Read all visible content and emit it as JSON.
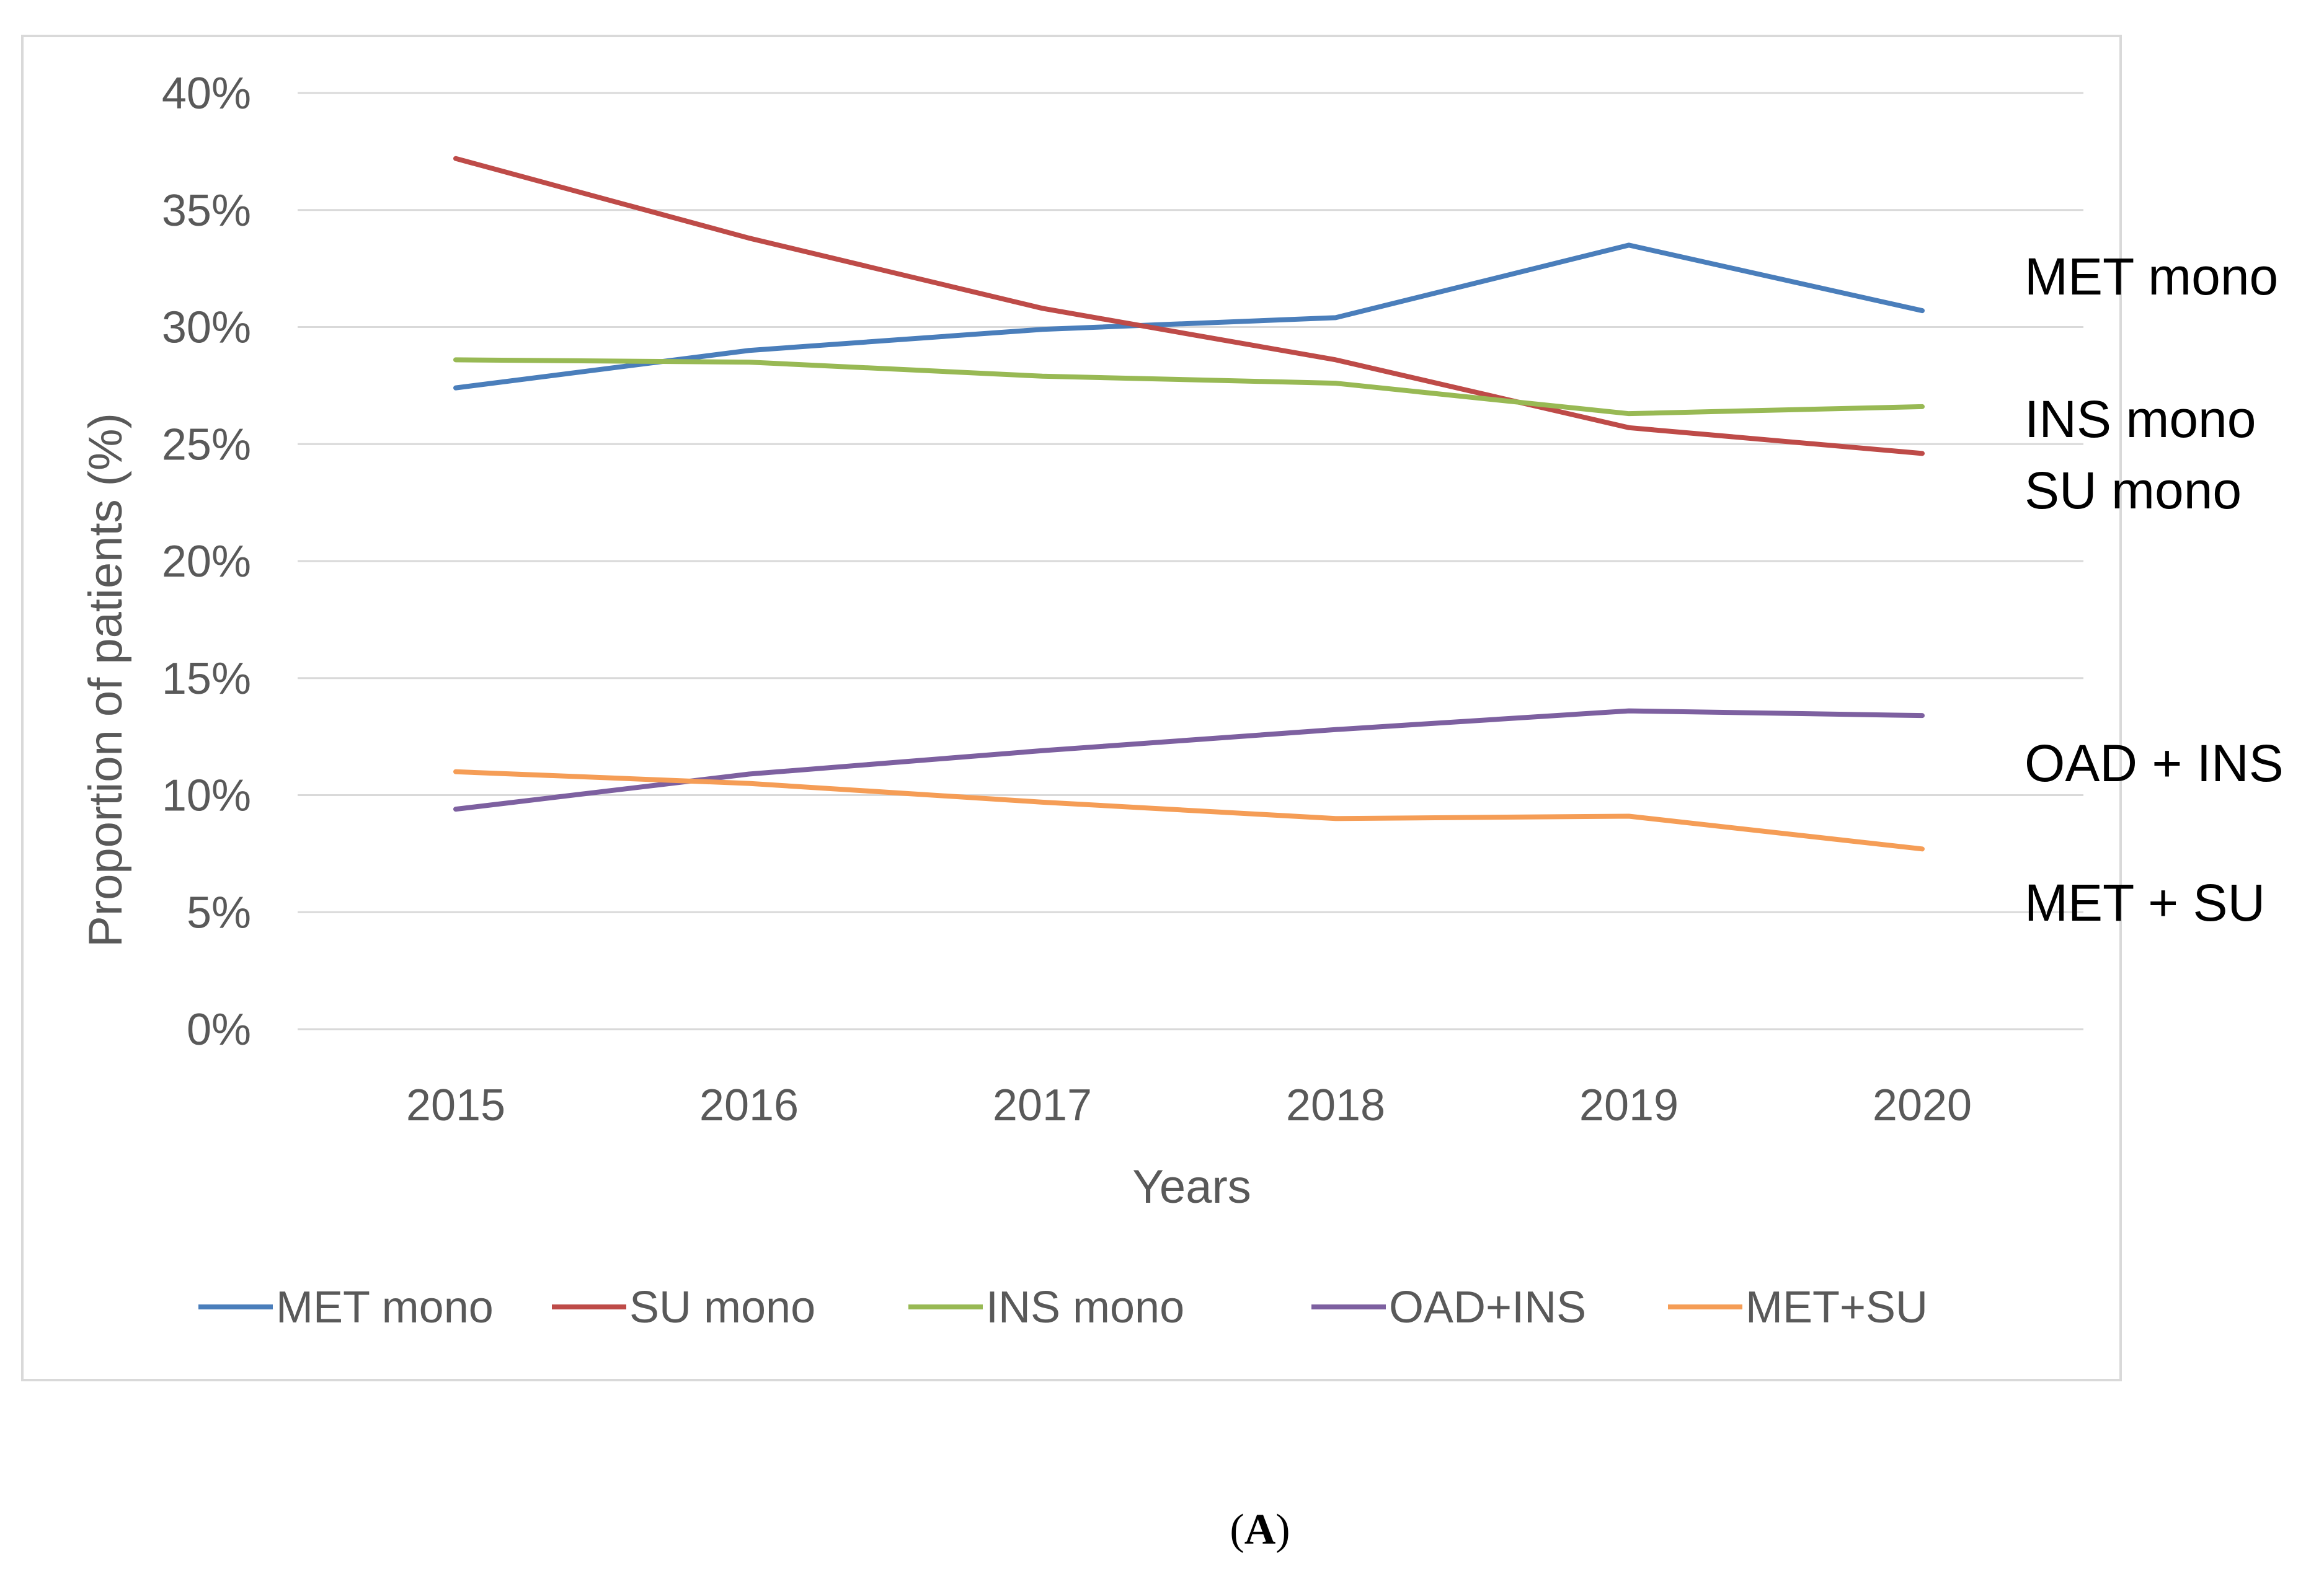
{
  "chart_data": {
    "type": "line",
    "title": "",
    "xlabel": "Years",
    "ylabel": "Proportion of patients (%)",
    "categories": [
      "2015",
      "2016",
      "2017",
      "2018",
      "2019",
      "2020"
    ],
    "y_ticks": [
      "0%",
      "5%",
      "10%",
      "15%",
      "20%",
      "25%",
      "30%",
      "35%",
      "40%"
    ],
    "ylim": [
      0,
      40
    ],
    "grid": true,
    "legend_position": "bottom",
    "series": [
      {
        "name": "MET mono",
        "color": "#4a7ebb",
        "values": [
          27.4,
          29.0,
          29.9,
          30.4,
          33.5,
          30.7
        ]
      },
      {
        "name": "SU mono",
        "color": "#be4b48",
        "values": [
          37.2,
          33.8,
          30.8,
          28.6,
          25.7,
          24.6
        ]
      },
      {
        "name": "INS mono",
        "color": "#98b954",
        "values": [
          28.6,
          28.5,
          27.9,
          27.6,
          26.3,
          26.6
        ]
      },
      {
        "name": "OAD+INS",
        "color": "#7d60a0",
        "values": [
          9.4,
          10.9,
          11.9,
          12.8,
          13.6,
          13.4
        ]
      },
      {
        "name": "MET+SU",
        "color": "#f59d56",
        "values": [
          11.0,
          10.5,
          9.7,
          9.0,
          9.1,
          7.7
        ]
      }
    ],
    "annotations": [
      "MET mono",
      "INS mono",
      "SU mono",
      "OAD + INS",
      "MET + SU"
    ]
  },
  "caption": {
    "open": "(",
    "letter": "A",
    "close": ")"
  }
}
